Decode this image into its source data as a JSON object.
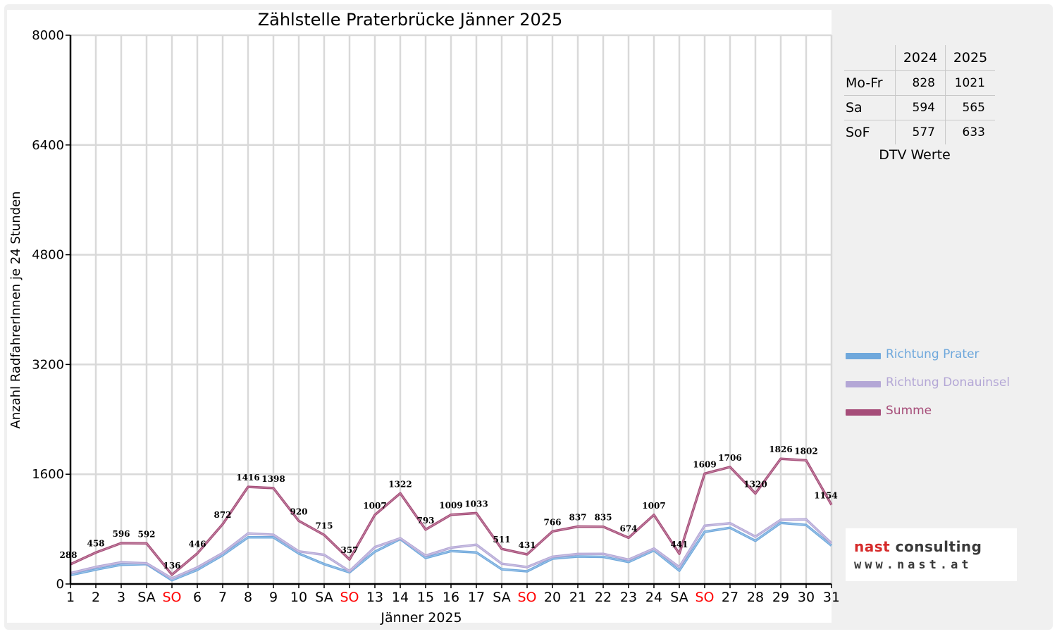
{
  "chart_data": {
    "type": "line",
    "title": "Zählstelle Praterbrücke Jänner 2025",
    "xlabel": "Jänner 2025",
    "ylabel": "Anzahl RadfahrerInnen je 24 Stunden",
    "ylim": [
      0,
      8000
    ],
    "yticks": [
      "0",
      "1600",
      "3200",
      "4800",
      "6400",
      "8000"
    ],
    "grid": true,
    "legend_position": "right",
    "categories": [
      "1",
      "2",
      "3",
      "SA",
      "SO",
      "6",
      "7",
      "8",
      "9",
      "10",
      "SA",
      "SO",
      "13",
      "14",
      "15",
      "16",
      "17",
      "SA",
      "SO",
      "20",
      "21",
      "22",
      "23",
      "24",
      "SA",
      "SO",
      "27",
      "28",
      "29",
      "30",
      "31"
    ],
    "category_colors": [
      "#000000",
      "#000000",
      "#000000",
      "#000000",
      "#ff0000",
      "#000000",
      "#000000",
      "#000000",
      "#000000",
      "#000000",
      "#000000",
      "#ff0000",
      "#000000",
      "#000000",
      "#000000",
      "#000000",
      "#000000",
      "#000000",
      "#ff0000",
      "#000000",
      "#000000",
      "#000000",
      "#000000",
      "#000000",
      "#000000",
      "#ff0000",
      "#000000",
      "#000000",
      "#000000",
      "#000000",
      "#000000"
    ],
    "series": [
      {
        "name": "Richtung Prater",
        "color": "#6fa8dc",
        "values": [
          130,
          210,
          280,
          290,
          55,
          205,
          420,
          680,
          680,
          445,
          290,
          170,
          470,
          655,
          380,
          480,
          460,
          215,
          185,
          370,
          400,
          395,
          320,
          490,
          195,
          760,
          820,
          630,
          890,
          860,
          560
        ]
      },
      {
        "name": "Richtung Donauinsel",
        "color": "#b4a7d6",
        "values": [
          158,
          248,
          316,
          302,
          81,
          241,
          452,
          736,
          718,
          475,
          425,
          187,
          537,
          667,
          413,
          529,
          573,
          296,
          246,
          396,
          437,
          440,
          354,
          517,
          246,
          849,
          886,
          690,
          936,
          942,
          594
        ]
      },
      {
        "name": "Summe",
        "color": "#a64d79",
        "values": [
          288,
          458,
          596,
          592,
          136,
          446,
          872,
          1416,
          1398,
          920,
          715,
          357,
          1007,
          1322,
          793,
          1009,
          1033,
          511,
          431,
          766,
          837,
          835,
          674,
          1007,
          441,
          1609,
          1706,
          1320,
          1826,
          1802,
          1154
        ]
      }
    ],
    "data_labels": [
      "288",
      "458",
      "596",
      "592",
      "136",
      "446",
      "872",
      "1416",
      "1398",
      "920",
      "715",
      "357",
      "1007",
      "1322",
      "793",
      "1009",
      "1033",
      "511",
      "431",
      "766",
      "837",
      "835",
      "674",
      "1007",
      "441",
      "1609",
      "1706",
      "1320",
      "1826",
      "1802",
      "1154"
    ]
  },
  "dtv_table": {
    "headers": [
      "",
      "2024",
      "2025"
    ],
    "rows": [
      {
        "label": "Mo-Fr",
        "v2024": "828",
        "v2025": "1021"
      },
      {
        "label": "Sa",
        "v2024": "594",
        "v2025": "565"
      },
      {
        "label": "SoF",
        "v2024": "577",
        "v2025": "633"
      }
    ],
    "caption": "DTV Werte"
  },
  "legend": [
    {
      "label": "Richtung Prater",
      "color": "#6fa8dc"
    },
    {
      "label": "Richtung Donauinsel",
      "color": "#b4a7d6"
    },
    {
      "label": "Summe",
      "color": "#a64d79"
    }
  ],
  "logo": {
    "line1_red": "nast",
    "line1_grey": "consulting",
    "line2": "www.nast.at"
  },
  "colors": {
    "panel_bg": "#f0f0f0",
    "grid": "#d9d9d9",
    "weekend_red": "#ff0000"
  }
}
